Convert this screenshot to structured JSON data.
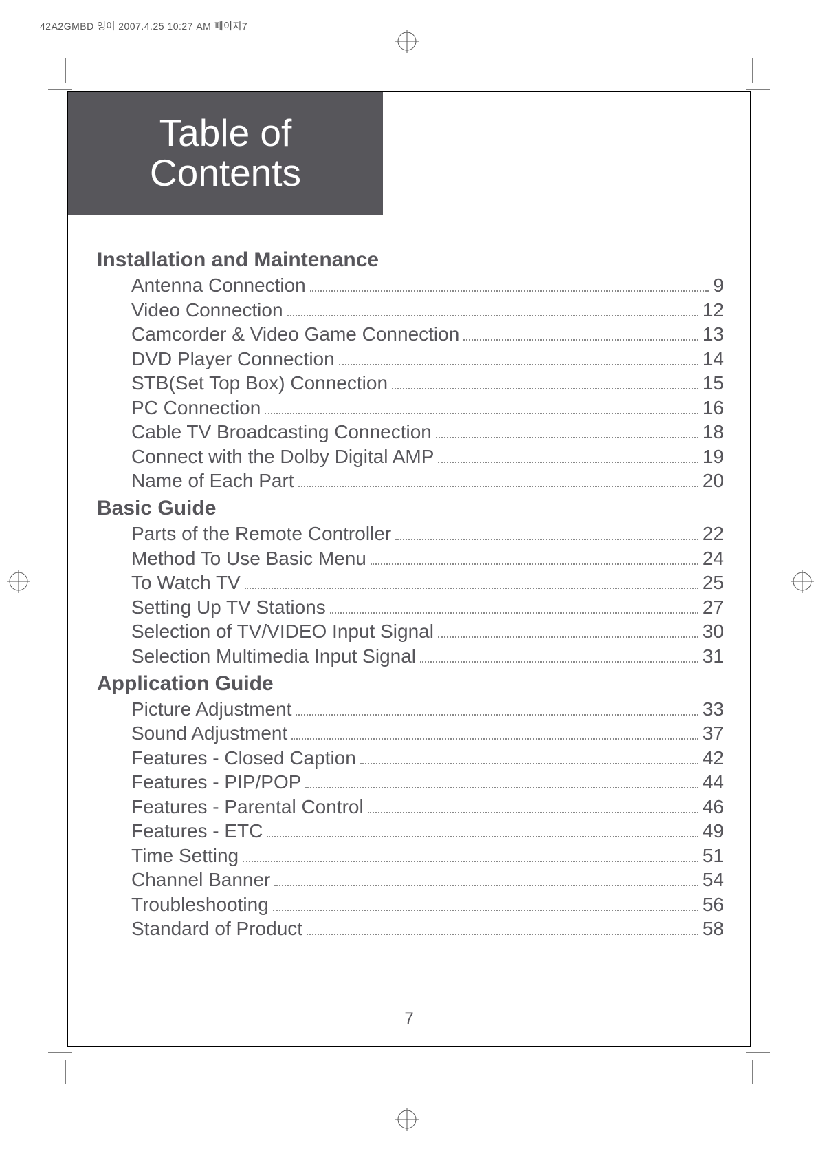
{
  "print_header": "42A2GMBD 영어  2007.4.25 10:27 AM 페이지7",
  "title": {
    "line1": "Table of",
    "line2": "Contents"
  },
  "sections": [
    {
      "heading": "Installation and Maintenance",
      "entries": [
        {
          "label": "Antenna Connection",
          "page": "9"
        },
        {
          "label": "Video Connection",
          "page": "12"
        },
        {
          "label": "Camcorder & Video Game Connection",
          "page": "13"
        },
        {
          "label": "DVD Player Connection",
          "page": "14"
        },
        {
          "label": "STB(Set Top Box) Connection",
          "page": "15"
        },
        {
          "label": "PC Connection",
          "page": "16"
        },
        {
          "label": "Cable TV Broadcasting Connection",
          "page": "18"
        },
        {
          "label": "Connect with the Dolby Digital AMP",
          "page": "19"
        },
        {
          "label": "Name of Each Part",
          "page": "20"
        }
      ]
    },
    {
      "heading": "Basic Guide",
      "entries": [
        {
          "label": "Parts of the Remote Controller",
          "page": "22"
        },
        {
          "label": "Method To Use Basic Menu",
          "page": "24"
        },
        {
          "label": "To Watch TV",
          "page": "25"
        },
        {
          "label": "Setting Up TV Stations",
          "page": "27"
        },
        {
          "label": "Selection of TV/VIDEO Input Signal",
          "page": "30"
        },
        {
          "label": "Selection Multimedia Input Signal",
          "page": "31"
        }
      ]
    },
    {
      "heading": "Application Guide",
      "entries": [
        {
          "label": "Picture Adjustment",
          "page": "33"
        },
        {
          "label": "Sound Adjustment",
          "page": "37"
        },
        {
          "label": "Features - Closed Caption",
          "page": "42"
        },
        {
          "label": "Features - PIP/POP",
          "page": "44"
        },
        {
          "label": "Features - Parental Control",
          "page": "46"
        },
        {
          "label": "Features - ETC",
          "page": "49"
        },
        {
          "label": "Time Setting",
          "page": "51"
        },
        {
          "label": "Channel Banner",
          "page": "54"
        },
        {
          "label": "Troubleshooting",
          "page": "56"
        },
        {
          "label": "Standard of Product",
          "page": "58"
        }
      ]
    }
  ],
  "page_number": "7",
  "colors": {
    "title_bg": "#57565b",
    "title_fg": "#ffffff",
    "text": "#57565b",
    "border": "#000000"
  }
}
